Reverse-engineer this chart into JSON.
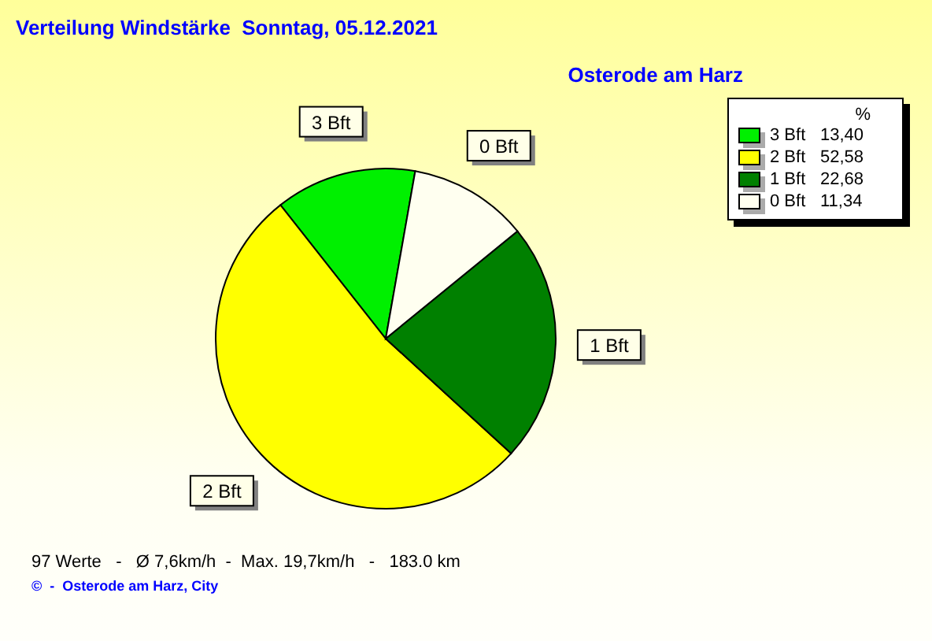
{
  "chart_data": {
    "type": "pie",
    "title": "Verteilung Windstärke  Sonntag, 05.12.2021",
    "subtitle": "Osterode am Harz",
    "categories": [
      "3 Bft",
      "2 Bft",
      "1 Bft",
      "0 Bft"
    ],
    "values": [
      13.4,
      52.58,
      22.68,
      11.34
    ],
    "value_labels": [
      "13,40",
      "52,58",
      "22,68",
      "11,34"
    ],
    "colors": [
      "#00f000",
      "#ffff00",
      "#008000",
      "#fffff0"
    ],
    "legend": "top right",
    "legend_title": "%",
    "annotations": [
      "97 Werte   -   Ø 7,6km/h  -  Max. 19,7km/h   -   183.0 km",
      "©  -  Osterode am Harz, City"
    ]
  }
}
